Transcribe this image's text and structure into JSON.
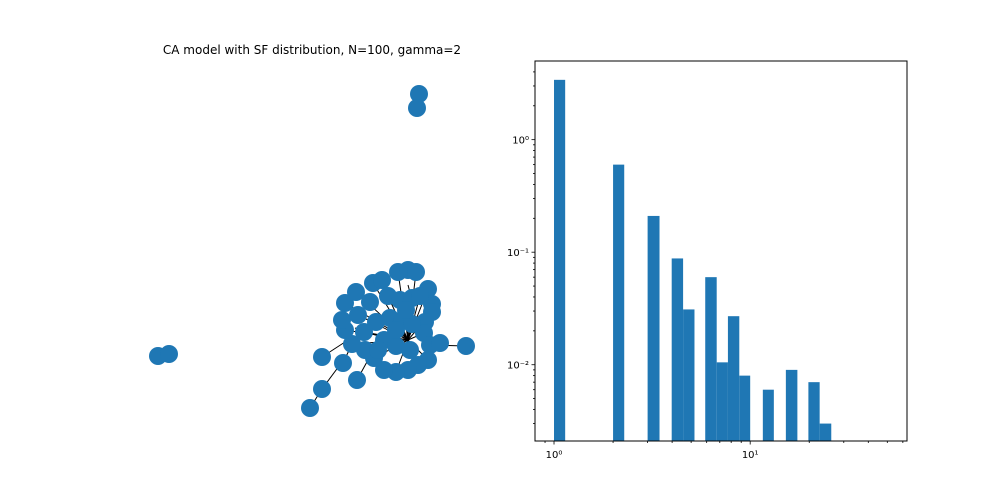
{
  "chart_data": [
    {
      "type": "network",
      "title": "CA model with SF distribution, N=100, gamma=2"
    },
    {
      "type": "bar",
      "title": "",
      "xscale": "log",
      "yscale": "log",
      "xlim": [
        0.8,
        63
      ],
      "ylim": [
        0.0021,
        5.0
      ],
      "x_tick_labels": [
        {
          "value": 1,
          "label": "10⁰"
        },
        {
          "value": 10,
          "label": "10¹"
        }
      ],
      "y_tick_labels": [
        {
          "value": 1,
          "label": "10⁰"
        },
        {
          "value": 0.1,
          "label": "10⁻¹"
        },
        {
          "value": 0.01,
          "label": "10⁻²"
        }
      ],
      "bars": [
        {
          "x0": 1.0,
          "x1": 1.14,
          "value": 3.4
        },
        {
          "x0": 2.0,
          "x1": 2.28,
          "value": 0.6
        },
        {
          "x0": 3.0,
          "x1": 3.45,
          "value": 0.21
        },
        {
          "x0": 3.98,
          "x1": 4.55,
          "value": 0.088
        },
        {
          "x0": 4.55,
          "x1": 5.2,
          "value": 0.031
        },
        {
          "x0": 5.9,
          "x1": 6.75,
          "value": 0.06
        },
        {
          "x0": 6.75,
          "x1": 7.7,
          "value": 0.0105
        },
        {
          "x0": 7.7,
          "x1": 8.8,
          "value": 0.027
        },
        {
          "x0": 8.8,
          "x1": 10.0,
          "value": 0.008
        },
        {
          "x0": 11.6,
          "x1": 13.2,
          "value": 0.006
        },
        {
          "x0": 15.2,
          "x1": 17.4,
          "value": 0.009
        },
        {
          "x0": 19.8,
          "x1": 22.6,
          "value": 0.007
        },
        {
          "x0": 22.6,
          "x1": 25.9,
          "value": 0.003
        }
      ]
    }
  ]
}
